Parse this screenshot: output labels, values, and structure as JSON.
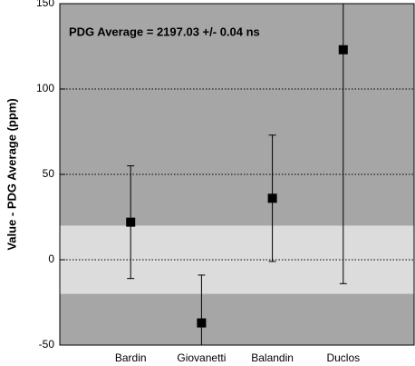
{
  "chart_data": {
    "type": "errorbar",
    "annotation": "PDG Average = 2197.03 +/- 0.04 ns",
    "y_label": "Value - PDG Average (ppm)",
    "categories": [
      "Bardin",
      "Giovanetti",
      "Balandin",
      "Duclos"
    ],
    "values": [
      22,
      -37,
      36,
      123
    ],
    "errors": [
      33,
      28,
      37,
      137
    ],
    "color": "#000000",
    "band": [
      -20,
      20
    ],
    "background": "#a6a6a6",
    "band_color": "#dcdcdc",
    "ylim": [
      -50,
      150
    ],
    "yticks": [
      -50,
      0,
      50,
      100,
      150
    ],
    "grid": true
  }
}
